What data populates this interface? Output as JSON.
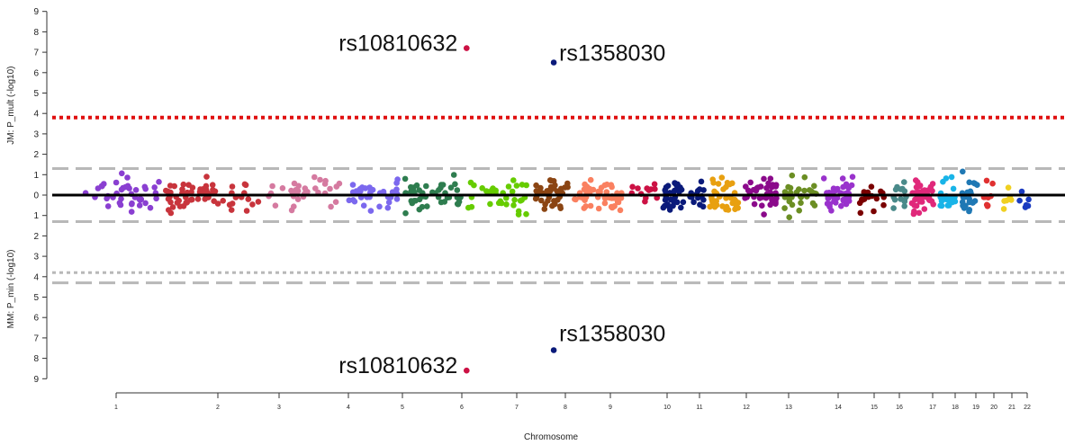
{
  "chart_data": {
    "type": "scatter",
    "title": "",
    "xlabel": "Chromosome",
    "ylabel_top": "JM: P_mult (-log10)",
    "ylabel_bottom": "MM: P_min (-log10)",
    "ylim": [
      -9,
      9
    ],
    "yticks": [
      "9",
      "8",
      "7",
      "6",
      "5",
      "4",
      "3",
      "2",
      "1",
      "0",
      "1",
      "2",
      "3",
      "4",
      "5",
      "6",
      "7",
      "8",
      "9"
    ],
    "chromosomes": [
      "1",
      "2",
      "3",
      "4",
      "5",
      "6",
      "7",
      "8",
      "9",
      "10",
      "11",
      "12",
      "13",
      "14",
      "15",
      "16",
      "17",
      "18",
      "19",
      "20",
      "21",
      "22"
    ],
    "chromosome_colors": [
      "#8a3fd1",
      "#c8343c",
      "#d57aa0",
      "#7b68ee",
      "#2e7d4f",
      "#66cc00",
      "#8b4513",
      "#fa8060",
      "#cc1144",
      "#0a1a7a",
      "#e8a010",
      "#8b0a8b",
      "#6b8e23",
      "#9932cc",
      "#7a0000",
      "#4a8a8a",
      "#e0287a",
      "#18b4e8",
      "#1f78b4",
      "#e03030",
      "#f0d020",
      "#1a3ac0"
    ],
    "thresholds": {
      "top_red_dotted": 3.8,
      "top_gray_dashed": 1.3,
      "bottom_gray_dashed_1": -1.3,
      "bottom_gray_dotted": -3.8,
      "bottom_gray_dashed_2": -4.3
    },
    "annotations": [
      {
        "label": "rs10810632",
        "chr": "9",
        "x": 11.05,
        "y": 7.2
      },
      {
        "label": "rs1358030",
        "chr": "10",
        "x": 13.5,
        "y": 6.5
      },
      {
        "label": "rs10810632",
        "chr": "9",
        "x": 11.05,
        "y": -8.6
      },
      {
        "label": "rs1358030",
        "chr": "10",
        "x": 13.5,
        "y": -7.6
      }
    ]
  }
}
